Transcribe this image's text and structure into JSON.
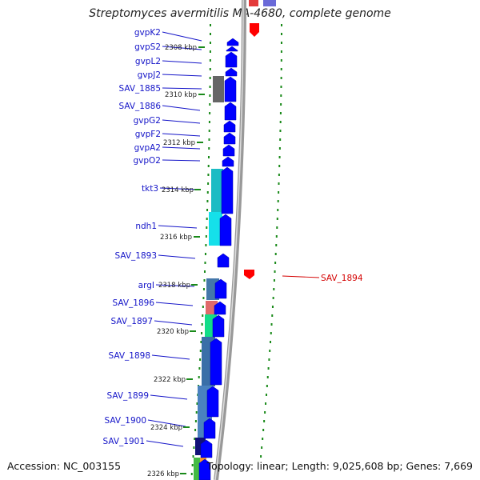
{
  "title": "Streptomyces avermitilis MA-4680, complete genome",
  "accession": "Accession: NC_003155",
  "summary": "Topology: linear; Length: 9,025,608 bp; Genes: 7,669",
  "colors": {
    "gene_label": "#1414c8",
    "highlight_label": "#d40000",
    "forward_gene": "#0000ff",
    "reverse_gene": "#ff0000",
    "tick": "#1a8a1a",
    "backbone": "#999999"
  },
  "ruler_labels": [
    "2308 kbp",
    "2310 kbp",
    "2312 kbp",
    "2314 kbp",
    "2316 kbp",
    "2318 kbp",
    "2320 kbp",
    "2322 kbp",
    "2324 kbp",
    "2326 kbp"
  ],
  "genes_left": [
    "gvpK2",
    "gvpS2",
    "gvpL2",
    "gvpJ2",
    "SAV_1885",
    "SAV_1886",
    "gvpG2",
    "gvpF2",
    "gvpA2",
    "gvpO2",
    "tkt3",
    "ndh1",
    "SAV_1893",
    "argI",
    "SAV_1896",
    "SAV_1897",
    "SAV_1898",
    "SAV_1899",
    "SAV_1900",
    "SAV_1901"
  ],
  "genes_right": [
    "SAV_1894"
  ]
}
